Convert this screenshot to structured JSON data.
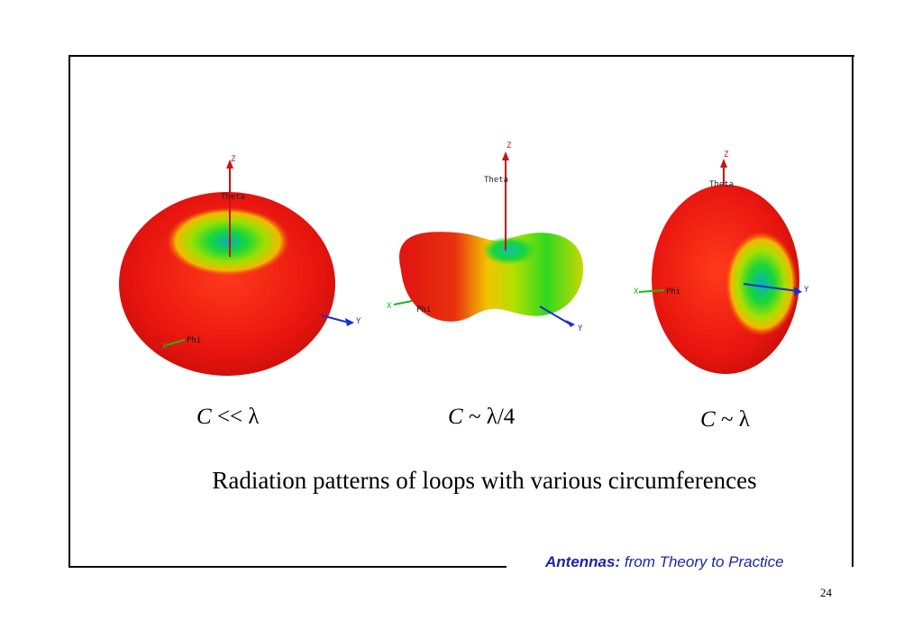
{
  "figures": [
    {
      "caption_var": "C",
      "caption_rel": "<<",
      "caption_rest": "λ",
      "axis": {
        "z": "Z",
        "theta": "Theta",
        "y": "Y",
        "phi": "Phi",
        "x": "X"
      }
    },
    {
      "caption_var": "C",
      "caption_rel": "~",
      "caption_rest": "λ/4",
      "axis": {
        "z": "Z",
        "theta": "Theta",
        "y": "Y",
        "phi": "Phi",
        "x": "X"
      }
    },
    {
      "caption_var": "C",
      "caption_rel": "~",
      "caption_rest": "λ",
      "axis": {
        "z": "Z",
        "theta": "Theta",
        "y": "Y",
        "phi": "Phi",
        "x": "X"
      }
    }
  ],
  "title": "Radiation patterns of loops with various circumferences",
  "footer": {
    "brand_bold": "Antennas:",
    "brand_rest": "from Theory to Practice"
  },
  "page_number": "24",
  "colors": {
    "lobe_red": "#e8150f",
    "lobe_yellow": "#f2d800",
    "lobe_green": "#20d020",
    "z_axis": "#cc1111",
    "y_axis": "#1a2fd0",
    "brand": "#1e24a6"
  }
}
